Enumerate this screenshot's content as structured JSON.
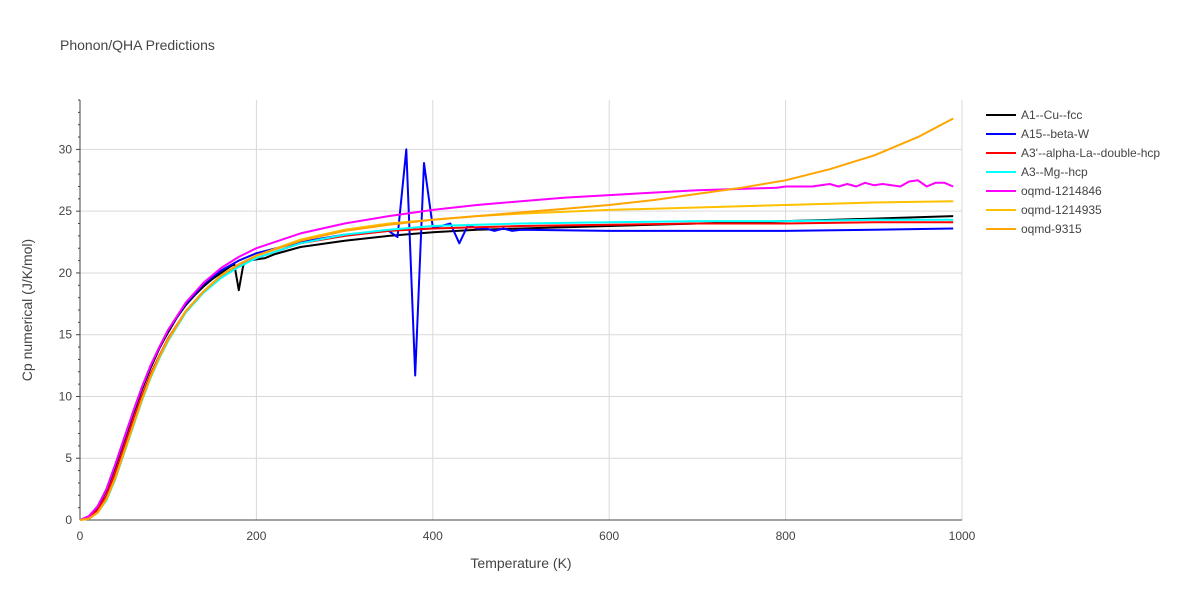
{
  "chart_data": {
    "type": "line",
    "title": "Phonon/QHA Predictions",
    "xlabel": "Temperature (K)",
    "ylabel": "Cp numerical (J/K/mol)",
    "xlim": [
      0,
      1000
    ],
    "ylim": [
      0,
      34
    ],
    "xticks": [
      0,
      200,
      400,
      600,
      800,
      1000
    ],
    "yticks": [
      0,
      5,
      10,
      15,
      20,
      25,
      30
    ],
    "grid": true,
    "legend_position": "right",
    "series": [
      {
        "name": "A1--Cu--fcc",
        "color": "#000000",
        "x": [
          0,
          10,
          20,
          30,
          40,
          50,
          60,
          70,
          80,
          90,
          100,
          110,
          120,
          130,
          140,
          150,
          160,
          170,
          175,
          180,
          185,
          190,
          200,
          210,
          220,
          250,
          300,
          350,
          400,
          450,
          500,
          600,
          700,
          800,
          900,
          990
        ],
        "y": [
          0,
          0.3,
          1.0,
          2.4,
          4.3,
          6.4,
          8.5,
          10.5,
          12.3,
          13.9,
          15.2,
          16.4,
          17.4,
          18.2,
          18.9,
          19.5,
          20.0,
          20.5,
          20.7,
          18.6,
          20.6,
          21.0,
          21.1,
          21.2,
          21.5,
          22.1,
          22.6,
          23.0,
          23.3,
          23.5,
          23.6,
          23.8,
          24.0,
          24.2,
          24.4,
          24.6
        ]
      },
      {
        "name": "A15--beta-W",
        "color": "#0000ff",
        "x": [
          0,
          10,
          20,
          30,
          40,
          50,
          60,
          70,
          80,
          90,
          100,
          120,
          140,
          160,
          180,
          200,
          250,
          300,
          350,
          360,
          370,
          380,
          390,
          400,
          410,
          420,
          430,
          440,
          450,
          460,
          470,
          480,
          490,
          500,
          600,
          700,
          800,
          900,
          990
        ],
        "y": [
          0,
          0.3,
          1.1,
          2.5,
          4.5,
          6.6,
          8.7,
          10.7,
          12.5,
          14.0,
          15.4,
          17.5,
          19.1,
          20.2,
          21.0,
          21.6,
          22.5,
          23.1,
          23.4,
          22.9,
          30.0,
          11.7,
          28.9,
          23.7,
          23.8,
          24.0,
          22.4,
          23.9,
          23.6,
          23.6,
          23.4,
          23.6,
          23.4,
          23.5,
          23.4,
          23.4,
          23.4,
          23.5,
          23.6
        ]
      },
      {
        "name": "A3'--alpha-La--double-hcp",
        "color": "#ff0000",
        "x": [
          0,
          10,
          20,
          30,
          40,
          50,
          60,
          70,
          80,
          90,
          100,
          120,
          140,
          160,
          180,
          200,
          250,
          300,
          350,
          400,
          450,
          500,
          600,
          700,
          800,
          900,
          990
        ],
        "y": [
          0,
          0.2,
          0.8,
          2.0,
          3.8,
          5.9,
          8.0,
          10.0,
          11.8,
          13.3,
          14.7,
          16.9,
          18.5,
          19.7,
          20.6,
          21.2,
          22.4,
          23.0,
          23.4,
          23.6,
          23.7,
          23.8,
          23.9,
          24.0,
          24.0,
          24.1,
          24.1
        ]
      },
      {
        "name": "A3--Mg--hcp",
        "color": "#00ffff",
        "x": [
          0,
          10,
          20,
          30,
          40,
          50,
          60,
          70,
          80,
          90,
          100,
          120,
          140,
          160,
          180,
          200,
          250,
          300,
          350,
          400,
          450,
          500,
          600,
          700,
          800,
          900,
          990
        ],
        "y": [
          0,
          0.1,
          0.6,
          1.6,
          3.3,
          5.4,
          7.5,
          9.6,
          11.5,
          13.1,
          14.5,
          16.8,
          18.4,
          19.6,
          20.5,
          21.2,
          22.4,
          23.1,
          23.5,
          23.8,
          23.9,
          24.0,
          24.1,
          24.2,
          24.2,
          24.3,
          24.3
        ]
      },
      {
        "name": "oqmd-1214846",
        "color": "#ff00ff",
        "x": [
          0,
          10,
          20,
          30,
          40,
          50,
          60,
          70,
          80,
          90,
          100,
          120,
          140,
          160,
          180,
          200,
          250,
          300,
          350,
          400,
          450,
          500,
          550,
          600,
          650,
          700,
          750,
          790,
          800,
          830,
          850,
          860,
          870,
          880,
          890,
          900,
          910,
          930,
          940,
          950,
          960,
          970,
          980,
          990
        ],
        "y": [
          0,
          0.3,
          1.1,
          2.5,
          4.5,
          6.6,
          8.7,
          10.7,
          12.5,
          14.0,
          15.4,
          17.6,
          19.2,
          20.4,
          21.3,
          22.0,
          23.2,
          24.0,
          24.6,
          25.1,
          25.5,
          25.8,
          26.1,
          26.3,
          26.5,
          26.7,
          26.8,
          26.9,
          27.0,
          27.0,
          27.2,
          27.0,
          27.2,
          27.0,
          27.3,
          27.1,
          27.2,
          27.0,
          27.4,
          27.5,
          27.0,
          27.3,
          27.3,
          27.0
        ]
      },
      {
        "name": "oqmd-1214935",
        "color": "#ffc000",
        "x": [
          0,
          10,
          20,
          30,
          40,
          50,
          60,
          70,
          80,
          90,
          100,
          120,
          140,
          160,
          180,
          200,
          250,
          300,
          350,
          400,
          450,
          500,
          600,
          700,
          800,
          900,
          990
        ],
        "y": [
          0,
          0.1,
          0.6,
          1.7,
          3.4,
          5.5,
          7.6,
          9.7,
          11.6,
          13.2,
          14.6,
          16.9,
          18.5,
          19.8,
          20.7,
          21.4,
          22.7,
          23.5,
          24.0,
          24.3,
          24.6,
          24.8,
          25.1,
          25.3,
          25.5,
          25.7,
          25.8
        ]
      },
      {
        "name": "oqmd-9315",
        "color": "#ffa500",
        "x": [
          0,
          10,
          20,
          30,
          40,
          50,
          60,
          70,
          80,
          90,
          100,
          120,
          140,
          160,
          180,
          200,
          250,
          300,
          350,
          400,
          450,
          500,
          550,
          600,
          650,
          700,
          750,
          800,
          850,
          900,
          950,
          990
        ],
        "y": [
          0,
          0.1,
          0.6,
          1.7,
          3.4,
          5.5,
          7.6,
          9.7,
          11.6,
          13.2,
          14.6,
          16.9,
          18.5,
          19.8,
          20.7,
          21.4,
          22.6,
          23.4,
          23.9,
          24.3,
          24.6,
          24.9,
          25.2,
          25.5,
          25.9,
          26.4,
          26.9,
          27.5,
          28.4,
          29.5,
          31.0,
          32.5
        ]
      }
    ]
  }
}
